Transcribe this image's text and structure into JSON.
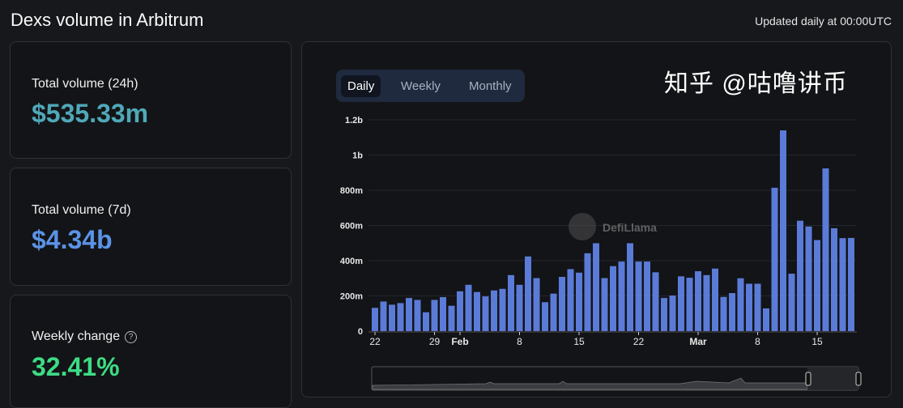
{
  "header": {
    "title": "Dexs volume in Arbitrum",
    "updated": "Updated daily at 00:00UTC"
  },
  "stats": [
    {
      "label": "Total volume (24h)",
      "value": "$535.33m",
      "color": "#4fa8b8"
    },
    {
      "label": "Total volume (7d)",
      "value": "$4.34b",
      "color": "#5b93e6"
    },
    {
      "label": "Weekly change",
      "value": "32.41%",
      "color": "#3ddc84",
      "help_icon": "question-circle-icon"
    }
  ],
  "tabs": [
    {
      "label": "Daily",
      "active": true
    },
    {
      "label": "Weekly",
      "active": false
    },
    {
      "label": "Monthly",
      "active": false
    }
  ],
  "watermark": {
    "logo_text": "DefiLlama",
    "overlay_text": "知乎 @咕噜讲币"
  },
  "chart_data": {
    "type": "bar",
    "bar_color": "#5b7bd8",
    "ylim": [
      0,
      1200
    ],
    "y_unit": "USD millions",
    "y_ticks": [
      "0",
      "200m",
      "400m",
      "600m",
      "800m",
      "1b",
      "1.2b"
    ],
    "y_tick_values": [
      0,
      200,
      400,
      600,
      800,
      1000,
      1200
    ],
    "x_start": "Jan 22",
    "x_end": "Mar 19",
    "x_ticks": [
      {
        "label": "22",
        "index": 0
      },
      {
        "label": "29",
        "index": 7
      },
      {
        "label": "Feb",
        "index": 10,
        "bold": true
      },
      {
        "label": "8",
        "index": 17
      },
      {
        "label": "15",
        "index": 24
      },
      {
        "label": "22",
        "index": 31
      },
      {
        "label": "Mar",
        "index": 38,
        "bold": true
      },
      {
        "label": "8",
        "index": 45
      },
      {
        "label": "15",
        "index": 52
      }
    ],
    "values": [
      132,
      168,
      150,
      159,
      188,
      177,
      107,
      177,
      193,
      144,
      226,
      263,
      222,
      197,
      231,
      240,
      318,
      263,
      424,
      301,
      164,
      213,
      308,
      352,
      332,
      442,
      499,
      301,
      369,
      395,
      499,
      395,
      395,
      334,
      188,
      202,
      311,
      303,
      340,
      318,
      355,
      194,
      216,
      300,
      269,
      269,
      129,
      814,
      1140,
      326,
      627,
      594,
      517,
      924,
      584,
      528,
      529
    ],
    "grid": true
  }
}
